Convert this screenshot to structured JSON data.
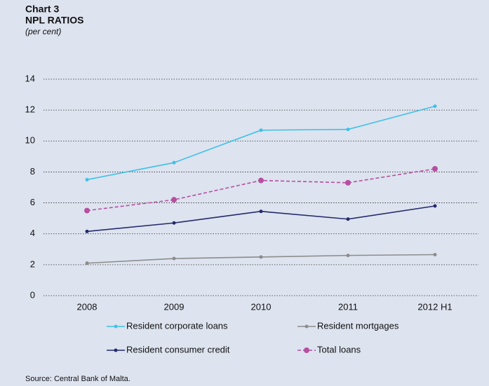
{
  "chart_data": {
    "type": "line",
    "chart_label": "Chart 3",
    "title": "NPL RATIOS",
    "subtitle": "(per cent)",
    "source": "Source: Central Bank of Malta.",
    "categories": [
      "2008",
      "2009",
      "2010",
      "2011",
      "2012 H1"
    ],
    "series": [
      {
        "name": "Resident corporate loans",
        "color": "#3ec1e8",
        "dashed": false,
        "values": [
          7.5,
          8.6,
          10.7,
          10.75,
          12.25
        ]
      },
      {
        "name": "Resident mortgages",
        "color": "#8c8c8c",
        "dashed": false,
        "values": [
          2.1,
          2.4,
          2.5,
          2.6,
          2.65
        ]
      },
      {
        "name": "Resident consumer credit",
        "color": "#232a6b",
        "dashed": false,
        "values": [
          4.15,
          4.7,
          5.45,
          4.95,
          5.8
        ]
      },
      {
        "name": "Total loans",
        "color": "#b74fa0",
        "dashed": true,
        "values": [
          5.5,
          6.2,
          7.45,
          7.3,
          8.2
        ]
      }
    ],
    "ylim": [
      0,
      14
    ],
    "yticks": [
      0,
      2,
      4,
      6,
      8,
      10,
      12,
      14
    ],
    "grid": true
  }
}
